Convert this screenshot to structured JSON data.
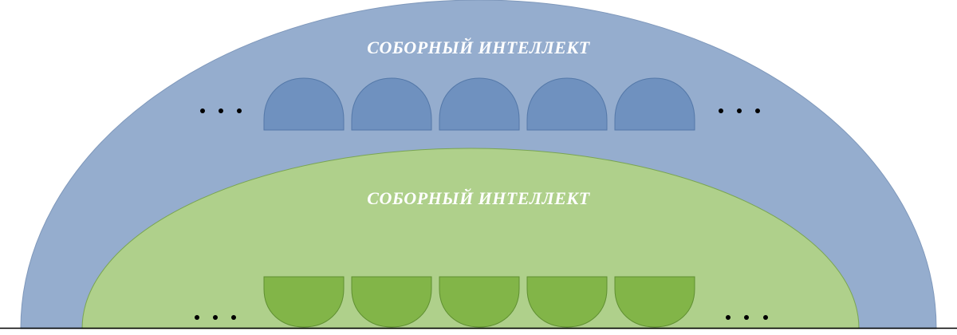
{
  "diagram": {
    "outer_region": {
      "label": "СОБОРНЫЙ ИНТЕЛЛЕКТ",
      "fill": "#95adce",
      "stroke": "#7f98bb",
      "unit_fill": "#6f91bf",
      "unit_stroke": "#5478a8",
      "unit_count": 5,
      "ellipsis": "• • •"
    },
    "inner_region": {
      "label": "СОБОРНЫЙ ИНТЕЛЛЕКТ",
      "fill": "#afd08b",
      "stroke": "#7aa552",
      "unit_fill": "#82b548",
      "unit_stroke": "#5f8f31",
      "unit_count": 5,
      "ellipsis": "• • •"
    },
    "baseline_color": "#000000",
    "dot_color": "#000000"
  }
}
